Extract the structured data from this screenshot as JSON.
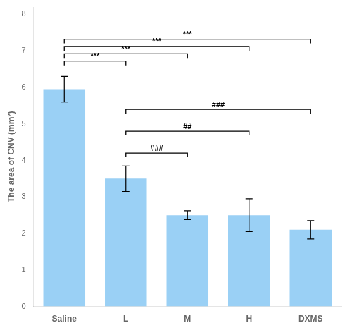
{
  "chart_data": {
    "type": "bar",
    "categories": [
      "Saline",
      "L",
      "M",
      "H",
      "DXMS"
    ],
    "values": [
      5.95,
      3.5,
      2.5,
      2.5,
      2.1
    ],
    "errors": [
      0.35,
      0.35,
      0.12,
      0.45,
      0.25
    ],
    "ylabel": "The area of CNV (mm²)",
    "ylim": [
      0,
      8.2
    ],
    "yticks": [
      0,
      1,
      2,
      3,
      4,
      5,
      6,
      7,
      8
    ],
    "grid": false,
    "brackets": [
      {
        "left": "Saline",
        "right": "L",
        "y": 6.72,
        "label": "***"
      },
      {
        "left": "Saline",
        "right": "M",
        "y": 6.92,
        "label": "***"
      },
      {
        "left": "Saline",
        "right": "H",
        "y": 7.12,
        "label": "***"
      },
      {
        "left": "Saline",
        "right": "DXMS",
        "y": 7.32,
        "label": "***"
      },
      {
        "left": "L",
        "right": "M",
        "y": 4.2,
        "label": "###"
      },
      {
        "left": "L",
        "right": "H",
        "y": 4.8,
        "label": "##"
      },
      {
        "left": "L",
        "right": "DXMS",
        "y": 5.4,
        "label": "###"
      }
    ]
  }
}
